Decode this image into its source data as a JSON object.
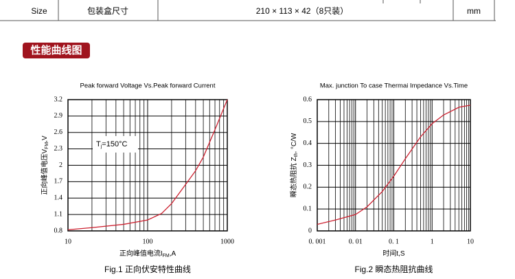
{
  "table": {
    "rows": [
      [
        "Size",
        "包装盒尺寸",
        "210 × 113 × 42（8只装）",
        "mm"
      ]
    ]
  },
  "section_title": "性能曲线图",
  "chart_data": [
    {
      "type": "line",
      "title": "Peak forward Voltage Vs.Peak forward Current",
      "xscale": "log",
      "grid": true,
      "x": [
        10,
        20,
        50,
        100,
        150,
        200,
        300,
        400,
        500,
        700,
        1000
      ],
      "series": [
        {
          "color": "#cc1f2e",
          "values": [
            0.82,
            0.86,
            0.92,
            1.0,
            1.12,
            1.3,
            1.65,
            1.9,
            2.15,
            2.65,
            3.2
          ]
        }
      ],
      "xlim": [
        10,
        1000
      ],
      "xticks": [
        10,
        100,
        1000
      ],
      "ylim": [
        0.8,
        3.2
      ],
      "yticks": [
        0.8,
        1.1,
        1.4,
        1.7,
        2,
        2.3,
        2.6,
        2.9,
        3.2
      ],
      "x_label": [
        "正向峰值电流I",
        "FM",
        ",A"
      ],
      "y_label": [
        "正向峰值电压V",
        "FM",
        ",V"
      ],
      "annotation": [
        "T",
        "j",
        "=150°C"
      ],
      "caption": "Fig.1 正向伏安特性曲线"
    },
    {
      "type": "line",
      "title": "Max. junction To case Thermai Impedance Vs.Time",
      "xscale": "log",
      "grid": true,
      "x": [
        0.001,
        0.003,
        0.01,
        0.02,
        0.05,
        0.1,
        0.2,
        0.5,
        1,
        2,
        5,
        10
      ],
      "series": [
        {
          "color": "#cc1f2e",
          "values": [
            0.03,
            0.05,
            0.075,
            0.11,
            0.18,
            0.25,
            0.33,
            0.43,
            0.49,
            0.53,
            0.565,
            0.575
          ]
        }
      ],
      "xlim": [
        0.001,
        10
      ],
      "xticks": [
        {
          "value": 0.001,
          "label": "0. 001"
        },
        {
          "value": 0.01,
          "label": "0. 01"
        },
        {
          "value": 0.1,
          "label": "0. 1"
        },
        1,
        10
      ],
      "ylim": [
        0,
        0.6
      ],
      "yticks": [
        0,
        0.1,
        0.2,
        0.3,
        0.4,
        0.5,
        0.6
      ],
      "x_label": [
        "时间t,S"
      ],
      "y_label": [
        "瞬态热阻抗 Z",
        "th",
        ", °C/W"
      ],
      "caption": "Fig.2 瞬态热阻抗曲线"
    }
  ]
}
